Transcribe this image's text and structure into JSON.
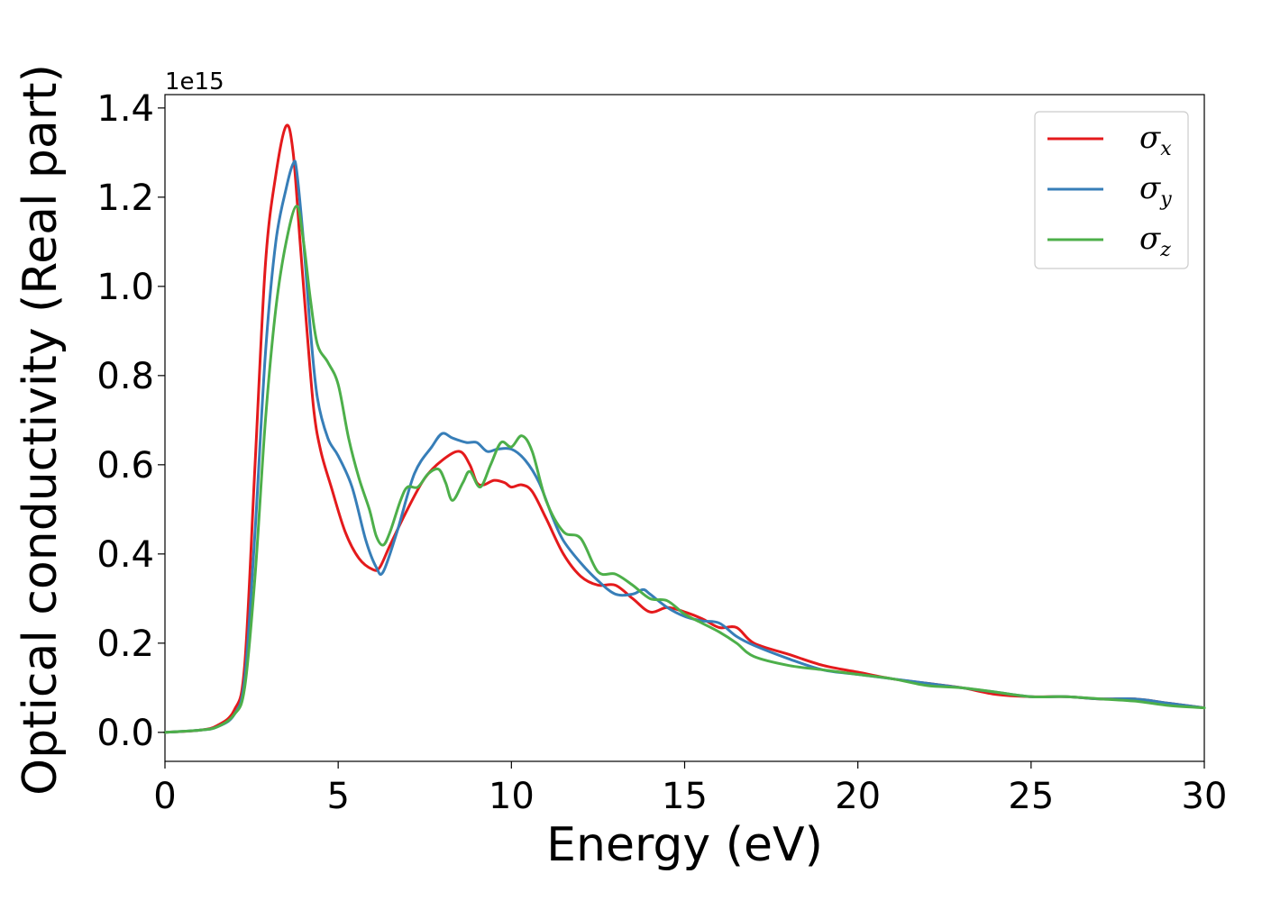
{
  "chart_data": {
    "type": "line",
    "xlabel": "Energy (eV)",
    "ylabel": "Optical conductivity (Real part)",
    "y_offset_text": "1e15",
    "y_scale": 1000000000000000.0,
    "xlim": [
      0,
      30
    ],
    "ylim": [
      -0.065,
      1.43
    ],
    "x_ticks": [
      0,
      5,
      10,
      15,
      20,
      25,
      30
    ],
    "y_ticks": [
      0.0,
      0.2,
      0.4,
      0.6,
      0.8,
      1.0,
      1.2,
      1.4
    ],
    "x_tick_labels": [
      "0",
      "5",
      "10",
      "15",
      "20",
      "25",
      "30"
    ],
    "y_tick_labels": [
      "0.0",
      "0.2",
      "0.4",
      "0.6",
      "0.8",
      "1.0",
      "1.2",
      "1.4"
    ],
    "grid": false,
    "legend": {
      "position": "top-right",
      "entries": [
        {
          "symbol": "σ",
          "subscript": "x",
          "color": "#e41a1c"
        },
        {
          "symbol": "σ",
          "subscript": "y",
          "color": "#377eb8"
        },
        {
          "symbol": "σ",
          "subscript": "z",
          "color": "#4daf4a"
        }
      ]
    },
    "series": [
      {
        "color": "#e41a1c",
        "x": [
          0,
          1,
          1.5,
          2,
          2.3,
          2.6,
          2.9,
          3.2,
          3.5,
          3.7,
          3.9,
          4.1,
          4.3,
          4.5,
          4.8,
          5.2,
          5.6,
          6,
          6.2,
          6.5,
          7,
          7.5,
          8,
          8.5,
          8.8,
          9,
          9.2,
          9.5,
          9.8,
          10,
          10.3,
          10.6,
          11,
          11.5,
          12,
          12.5,
          13,
          13.5,
          14,
          14.5,
          15,
          15.5,
          16,
          16.5,
          17,
          18,
          19,
          20,
          21,
          22,
          23,
          24,
          25,
          26,
          27,
          28,
          29,
          30
        ],
        "values": [
          0.0,
          0.005,
          0.015,
          0.05,
          0.15,
          0.6,
          1.05,
          1.25,
          1.36,
          1.3,
          1.1,
          0.9,
          0.72,
          0.63,
          0.55,
          0.45,
          0.39,
          0.365,
          0.37,
          0.42,
          0.5,
          0.57,
          0.61,
          0.63,
          0.6,
          0.56,
          0.555,
          0.565,
          0.56,
          0.55,
          0.555,
          0.54,
          0.48,
          0.4,
          0.35,
          0.33,
          0.33,
          0.3,
          0.27,
          0.28,
          0.27,
          0.255,
          0.235,
          0.235,
          0.2,
          0.175,
          0.15,
          0.135,
          0.12,
          0.11,
          0.1,
          0.085,
          0.08,
          0.08,
          0.075,
          0.075,
          0.065,
          0.055
        ]
      },
      {
        "color": "#377eb8",
        "x": [
          0,
          1,
          1.5,
          2,
          2.3,
          2.6,
          2.9,
          3.2,
          3.5,
          3.7,
          3.8,
          4,
          4.2,
          4.4,
          4.7,
          5,
          5.4,
          5.8,
          6.1,
          6.3,
          6.7,
          7.2,
          7.7,
          8,
          8.3,
          8.7,
          9,
          9.3,
          9.6,
          10,
          10.4,
          10.8,
          11.2,
          11.5,
          12,
          12.5,
          13,
          13.5,
          13.8,
          14,
          14.5,
          15,
          15.5,
          16,
          16.5,
          17,
          18,
          19,
          20,
          21,
          22,
          23,
          24,
          25,
          26,
          27,
          28,
          29,
          30
        ],
        "values": [
          0.0,
          0.005,
          0.012,
          0.04,
          0.12,
          0.45,
          0.85,
          1.1,
          1.22,
          1.275,
          1.26,
          1.1,
          0.9,
          0.75,
          0.66,
          0.62,
          0.55,
          0.43,
          0.37,
          0.36,
          0.45,
          0.58,
          0.64,
          0.67,
          0.66,
          0.65,
          0.65,
          0.63,
          0.635,
          0.635,
          0.61,
          0.56,
          0.48,
          0.43,
          0.38,
          0.34,
          0.31,
          0.31,
          0.32,
          0.31,
          0.28,
          0.26,
          0.25,
          0.245,
          0.215,
          0.195,
          0.165,
          0.14,
          0.13,
          0.12,
          0.11,
          0.1,
          0.09,
          0.08,
          0.08,
          0.075,
          0.075,
          0.065,
          0.055
        ]
      },
      {
        "color": "#4daf4a",
        "x": [
          0,
          1,
          1.5,
          2,
          2.3,
          2.6,
          2.9,
          3.2,
          3.5,
          3.8,
          4,
          4.2,
          4.4,
          4.7,
          5,
          5.3,
          5.6,
          5.9,
          6.1,
          6.3,
          6.5,
          6.8,
          7,
          7.3,
          7.6,
          7.9,
          8.1,
          8.3,
          8.6,
          8.8,
          9.1,
          9.4,
          9.7,
          10,
          10.3,
          10.6,
          11,
          11.5,
          12,
          12.5,
          13,
          13.5,
          14,
          14.5,
          15,
          15.5,
          16,
          16.5,
          17,
          18,
          19,
          20,
          21,
          22,
          23,
          24,
          25,
          26,
          27,
          28,
          29,
          30
        ],
        "values": [
          0.0,
          0.005,
          0.012,
          0.04,
          0.1,
          0.35,
          0.7,
          0.95,
          1.1,
          1.18,
          1.1,
          0.97,
          0.87,
          0.83,
          0.78,
          0.66,
          0.57,
          0.5,
          0.44,
          0.42,
          0.45,
          0.52,
          0.55,
          0.55,
          0.58,
          0.59,
          0.56,
          0.52,
          0.56,
          0.585,
          0.55,
          0.6,
          0.65,
          0.64,
          0.665,
          0.63,
          0.52,
          0.45,
          0.435,
          0.36,
          0.355,
          0.33,
          0.3,
          0.295,
          0.265,
          0.245,
          0.225,
          0.2,
          0.17,
          0.15,
          0.14,
          0.13,
          0.12,
          0.105,
          0.1,
          0.09,
          0.08,
          0.08,
          0.075,
          0.07,
          0.06,
          0.055
        ]
      }
    ]
  }
}
